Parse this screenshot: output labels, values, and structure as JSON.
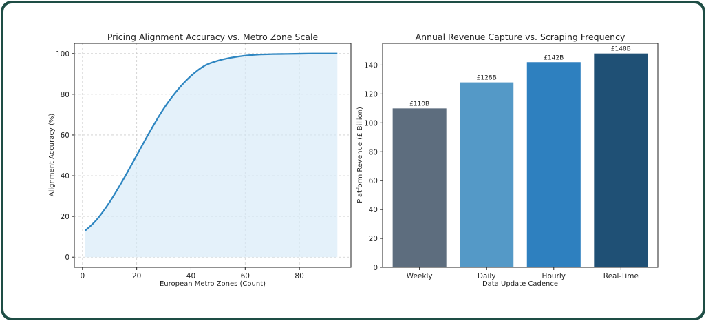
{
  "colors": {
    "frame": "#1e4d45",
    "line": "#2e86c1",
    "fill": "#d6eaf8",
    "grid": "#cccccc",
    "bars": [
      "#5d6d7e",
      "#5499c7",
      "#2e80bf",
      "#1f5075"
    ]
  },
  "chart_data": [
    {
      "type": "area",
      "title": "Pricing Alignment Accuracy vs. Metro Zone Scale",
      "xlabel": "European Metro Zones (Count)",
      "ylabel": "Alignment Accuracy (%)",
      "xlim": [
        -3,
        99
      ],
      "ylim": [
        -5,
        105
      ],
      "xticks": [
        0,
        20,
        40,
        60,
        80
      ],
      "yticks": [
        0,
        20,
        40,
        60,
        80,
        100
      ],
      "grid": true,
      "series": [
        {
          "x": [
            1,
            5,
            10,
            15,
            20,
            25,
            30,
            35,
            40,
            45,
            50,
            55,
            60,
            65,
            70,
            75,
            80,
            85,
            90,
            94
          ],
          "values": [
            13,
            18,
            27,
            38,
            50,
            62,
            73,
            82,
            89,
            94,
            96.5,
            98,
            99,
            99.5,
            99.7,
            99.8,
            99.9,
            100,
            100,
            100
          ]
        }
      ]
    },
    {
      "type": "bar",
      "title": "Annual Revenue Capture vs. Scraping Frequency",
      "xlabel": "Data Update Cadence",
      "ylabel": "Platform Revenue (£ Billion)",
      "ylim": [
        0,
        155
      ],
      "yticks": [
        0,
        20,
        40,
        60,
        80,
        100,
        120,
        140
      ],
      "grid": false,
      "categories": [
        "Weekly",
        "Daily",
        "Hourly",
        "Real-Time"
      ],
      "values": [
        110,
        128,
        142,
        148
      ],
      "data_labels": [
        "£110B",
        "£128B",
        "£142B",
        "£148B"
      ]
    }
  ]
}
